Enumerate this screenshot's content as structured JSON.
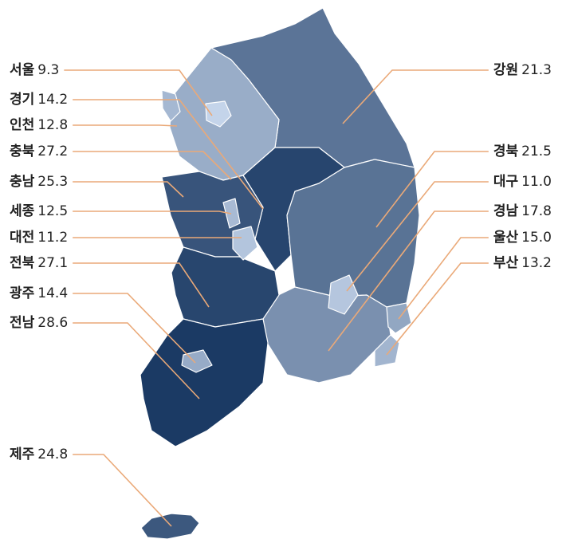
{
  "chart_data": {
    "type": "map",
    "categories": [
      "서울",
      "경기",
      "인천",
      "충북",
      "충남",
      "세종",
      "대전",
      "전북",
      "광주",
      "전남",
      "제주",
      "강원",
      "경북",
      "대구",
      "경남",
      "울산",
      "부산"
    ],
    "values": [
      9.3,
      14.2,
      12.8,
      27.2,
      25.3,
      12.5,
      11.2,
      27.1,
      14.4,
      28.6,
      24.8,
      21.3,
      21.5,
      11.0,
      17.8,
      15.0,
      13.2
    ],
    "value_labels": [
      "9.3",
      "14.2",
      "12.8",
      "27.2",
      "25.3",
      "12.5",
      "11.2",
      "27.1",
      "14.4",
      "28.6",
      "24.8",
      "21.3",
      "21.5",
      "11.0",
      "17.8",
      "15.0",
      "13.2"
    ],
    "color_range": [
      "#c4d4ea",
      "#1b3a64"
    ],
    "leader_color": "#eaa978"
  }
}
